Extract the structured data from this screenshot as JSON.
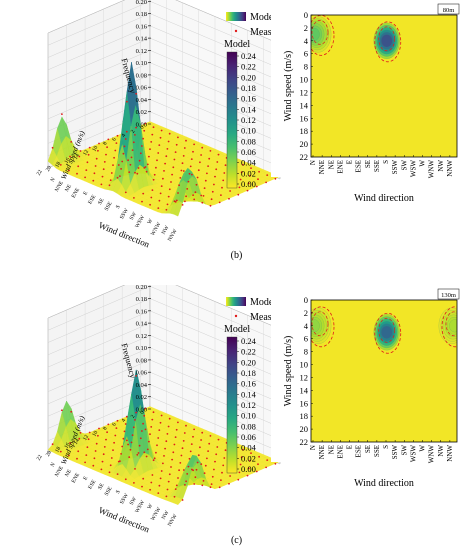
{
  "figure": {
    "panels": [
      {
        "label": "(b)",
        "height_tag": "80m",
        "legend": {
          "surface": "Model",
          "points": "Measured"
        },
        "colorbar": {
          "title": "Model",
          "ticks": [
            "0.24",
            "0.22",
            "0.20",
            "0.18",
            "0.16",
            "0.14",
            "0.12",
            "0.10",
            "0.08",
            "0.06",
            "0.04",
            "0.02",
            "0.00"
          ]
        },
        "surface3d": {
          "z_label": "Frequency",
          "x_label": "Wind direction",
          "y_label": "Wind speed (m/s)",
          "z_ticks": [
            "0.22",
            "0.20",
            "0.18",
            "0.16",
            "0.14",
            "0.12",
            "0.10",
            "0.08",
            "0.06",
            "0.04",
            "0.02",
            "0.00"
          ]
        },
        "contour": {
          "x_label": "Wind direction",
          "y_label": "Wind speed (m/s)",
          "x_ticks": [
            "N",
            "NNE",
            "NE",
            "ENE",
            "E",
            "ESE",
            "SE",
            "SSE",
            "S",
            "SSW",
            "SW",
            "WSW",
            "W",
            "WNW",
            "NW",
            "NNW"
          ],
          "y_ticks": [
            "0",
            "2",
            "4",
            "6",
            "8",
            "10",
            "12",
            "14",
            "16",
            "18",
            "20",
            "22"
          ]
        }
      },
      {
        "label": "(c)",
        "height_tag": "130m",
        "legend": {
          "surface": "Model",
          "points": "Measured"
        },
        "colorbar": {
          "title": "Model",
          "ticks": [
            "0.24",
            "0.22",
            "0.20",
            "0.18",
            "0.16",
            "0.14",
            "0.12",
            "0.10",
            "0.08",
            "0.06",
            "0.04",
            "0.02",
            "0.00"
          ]
        },
        "surface3d": {
          "z_label": "Frequency",
          "x_label": "Wind direction",
          "y_label": "Wind speed (m/s)",
          "z_ticks": [
            "0.22",
            "0.20",
            "0.18",
            "0.16",
            "0.14",
            "0.12",
            "0.10",
            "0.08",
            "0.06",
            "0.04",
            "0.02",
            "0.00"
          ]
        },
        "contour": {
          "x_label": "Wind direction",
          "y_label": "Wind speed (m/s)",
          "x_ticks": [
            "N",
            "NNE",
            "NE",
            "ENE",
            "E",
            "ESE",
            "SE",
            "SSE",
            "S",
            "SSW",
            "SW",
            "WSW",
            "W",
            "WNW",
            "NW",
            "NNW"
          ],
          "y_ticks": [
            "0",
            "2",
            "4",
            "6",
            "8",
            "10",
            "12",
            "14",
            "16",
            "18",
            "20",
            "22"
          ]
        }
      }
    ]
  },
  "chart_data": [
    {
      "type": "surface3d",
      "panel": "(b)",
      "xlabel": "Wind direction",
      "ylabel": "Wind speed (m/s)",
      "zlabel": "Frequency",
      "zlim": [
        0,
        0.22
      ],
      "peaks": [
        {
          "direction": "N",
          "speed": 3,
          "frequency": 0.06
        },
        {
          "direction": "S",
          "speed": 4,
          "frequency": 0.2
        },
        {
          "direction": "NNW",
          "speed": 3,
          "frequency": 0.05
        }
      ]
    },
    {
      "type": "heatmap",
      "panel": "(b)",
      "xlabel": "Wind direction",
      "ylabel": "Wind speed (m/s)",
      "ylim": [
        0,
        22
      ],
      "colorbar_range": [
        0,
        0.24
      ],
      "hotspots": [
        {
          "direction": "N",
          "speed": 3,
          "value": 0.06
        },
        {
          "direction": "S",
          "speed": 4,
          "value": 0.18
        }
      ]
    },
    {
      "type": "surface3d",
      "panel": "(c)",
      "xlabel": "Wind direction",
      "ylabel": "Wind speed (m/s)",
      "zlabel": "Frequency",
      "zlim": [
        0,
        0.22
      ],
      "peaks": [
        {
          "direction": "N",
          "speed": 4,
          "frequency": 0.06
        },
        {
          "direction": "S",
          "speed": 5,
          "frequency": 0.16
        },
        {
          "direction": "NNW",
          "speed": 4,
          "frequency": 0.04
        }
      ]
    },
    {
      "type": "heatmap",
      "panel": "(c)",
      "xlabel": "Wind direction",
      "ylabel": "Wind speed (m/s)",
      "ylim": [
        0,
        22
      ],
      "colorbar_range": [
        0,
        0.24
      ],
      "hotspots": [
        {
          "direction": "N",
          "speed": 4,
          "value": 0.04
        },
        {
          "direction": "S",
          "speed": 5,
          "value": 0.16
        },
        {
          "direction": "NNW",
          "speed": 4,
          "value": 0.03
        }
      ]
    }
  ]
}
